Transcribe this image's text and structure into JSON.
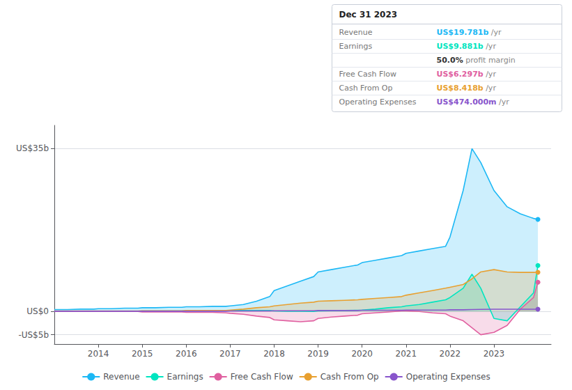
{
  "chart_data": {
    "type": "line",
    "x": [
      2013.0,
      2013.3,
      2013.6,
      2013.9,
      2014.0,
      2014.3,
      2014.6,
      2014.9,
      2015.0,
      2015.3,
      2015.6,
      2015.9,
      2016.0,
      2016.3,
      2016.6,
      2016.9,
      2017.0,
      2017.3,
      2017.6,
      2017.9,
      2018.0,
      2018.3,
      2018.6,
      2018.9,
      2019.0,
      2019.3,
      2019.6,
      2019.9,
      2020.0,
      2020.3,
      2020.6,
      2020.9,
      2021.0,
      2021.3,
      2021.6,
      2021.9,
      2022.0,
      2022.3,
      2022.5,
      2022.7,
      2023.0,
      2023.3,
      2023.6,
      2023.9,
      2024.0
    ],
    "series": [
      {
        "name": "Revenue",
        "color": "#1cb8f5",
        "type": "area",
        "values": [
          0.4,
          0.4,
          0.5,
          0.5,
          0.6,
          0.6,
          0.7,
          0.7,
          0.8,
          0.8,
          0.9,
          0.9,
          1.0,
          1.0,
          1.1,
          1.1,
          1.2,
          1.5,
          2.2,
          3.2,
          4.5,
          5.5,
          6.5,
          7.5,
          8.5,
          9.0,
          9.5,
          10.0,
          10.5,
          11.0,
          11.5,
          12.0,
          12.5,
          13.0,
          13.5,
          14.0,
          16.0,
          26.0,
          35.0,
          32.0,
          26.0,
          22.5,
          21.0,
          20.0,
          19.781
        ]
      },
      {
        "name": "Earnings",
        "color": "#00e5c0",
        "type": "area",
        "values": [
          0.05,
          0.05,
          0.05,
          0.05,
          0.05,
          0.05,
          0.05,
          0.05,
          0.1,
          0.1,
          0.1,
          0.1,
          0.15,
          0.15,
          0.15,
          0.15,
          0.2,
          0.2,
          0.2,
          0.2,
          0.1,
          0.05,
          0.05,
          0.0,
          0.1,
          0.15,
          0.2,
          0.25,
          0.3,
          0.5,
          0.8,
          1.0,
          1.2,
          1.5,
          2.0,
          2.5,
          3.0,
          5.0,
          8.0,
          5.0,
          -1.5,
          -2.0,
          1.0,
          4.0,
          9.881
        ]
      },
      {
        "name": "Free Cash Flow",
        "color": "#e060a0",
        "type": "area",
        "values": [
          0.0,
          0.0,
          0.0,
          0.0,
          0.0,
          0.0,
          0.0,
          0.0,
          -0.1,
          -0.1,
          -0.1,
          -0.1,
          -0.2,
          -0.2,
          -0.2,
          -0.3,
          -0.4,
          -0.6,
          -1.0,
          -1.3,
          -1.8,
          -2.0,
          -2.2,
          -2.0,
          -1.5,
          -1.2,
          -1.0,
          -0.8,
          -0.5,
          -0.3,
          -0.1,
          0.1,
          0.1,
          0.0,
          -0.3,
          -0.5,
          -1.0,
          -2.0,
          -3.5,
          -5.0,
          -4.5,
          -3.0,
          0.5,
          3.0,
          6.297
        ]
      },
      {
        "name": "Cash From Op",
        "color": "#e8a030",
        "type": "area",
        "values": [
          0.1,
          0.1,
          0.1,
          0.1,
          0.1,
          0.1,
          0.1,
          0.1,
          0.15,
          0.15,
          0.15,
          0.15,
          0.2,
          0.2,
          0.2,
          0.2,
          0.3,
          0.5,
          0.8,
          1.0,
          1.2,
          1.5,
          1.8,
          2.0,
          2.2,
          2.3,
          2.4,
          2.5,
          2.6,
          2.8,
          3.0,
          3.2,
          3.5,
          4.0,
          4.5,
          5.0,
          5.2,
          5.8,
          7.0,
          8.5,
          9.0,
          8.5,
          8.4,
          8.4,
          8.418
        ]
      },
      {
        "name": "Operating Expenses",
        "color": "#8855cc",
        "type": "line",
        "values": [
          0.05,
          0.05,
          0.05,
          0.05,
          0.05,
          0.05,
          0.05,
          0.05,
          0.05,
          0.05,
          0.05,
          0.05,
          0.05,
          0.05,
          0.05,
          0.05,
          0.1,
          0.1,
          0.1,
          0.1,
          0.15,
          0.15,
          0.15,
          0.15,
          0.2,
          0.2,
          0.2,
          0.2,
          0.25,
          0.25,
          0.25,
          0.25,
          0.3,
          0.3,
          0.3,
          0.3,
          0.35,
          0.35,
          0.4,
          0.45,
          0.474,
          0.474,
          0.474,
          0.474,
          0.474
        ]
      }
    ],
    "xlim": [
      2013.0,
      2024.3
    ],
    "xticks": [
      2014,
      2015,
      2016,
      2017,
      2018,
      2019,
      2020,
      2021,
      2022,
      2023
    ],
    "ylim": [
      -7,
      40
    ],
    "yticks": [
      {
        "value": -5,
        "label": "-US$5b"
      },
      {
        "value": 0,
        "label": "US$0"
      },
      {
        "value": 35,
        "label": "US$35b"
      }
    ],
    "grid": true,
    "legend": "bottom",
    "annotations": [
      {
        "title": "Dec 31 2023",
        "rows": [
          {
            "label": "Revenue",
            "value": "US$19.781b",
            "unit": " /yr",
            "color": "#1cb8f5"
          },
          {
            "label": "Earnings",
            "value": "US$9.881b",
            "unit": " /yr",
            "color": "#00e5c0"
          },
          {
            "value": "50.0%",
            "unit": " profit margin",
            "color": "#333333"
          },
          {
            "label": "Free Cash Flow",
            "value": "US$6.297b",
            "unit": " /yr",
            "color": "#e060a0"
          },
          {
            "label": "Cash From Op",
            "value": "US$8.418b",
            "unit": " /yr",
            "color": "#e8a030"
          },
          {
            "label": "Operating Expenses",
            "value": "US$474.000m",
            "unit": " /yr",
            "color": "#8855cc"
          }
        ]
      }
    ]
  }
}
